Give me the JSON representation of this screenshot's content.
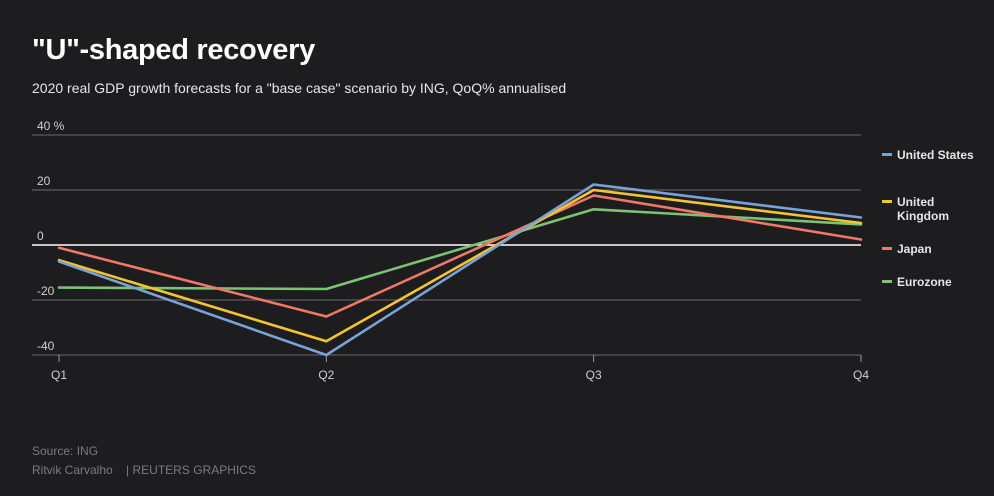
{
  "header": {
    "title": "\"U\"-shaped recovery",
    "subtitle": "2020 real GDP growth forecasts for a \"base case\" scenario by ING, QoQ% annualised"
  },
  "chart_data": {
    "type": "line",
    "title": "\"U\"-shaped recovery",
    "subtitle": "2020 real GDP growth forecasts for a \"base case\" scenario by ING, QoQ% annualised",
    "xlabel": "",
    "ylabel": "",
    "categories": [
      "Q1",
      "Q2",
      "Q3",
      "Q4"
    ],
    "ylim": [
      -40,
      40
    ],
    "y_ticks": [
      40,
      20,
      0,
      -20,
      -40
    ],
    "y_tick_labels": [
      "40 %",
      "20",
      "0",
      "-20",
      "-40"
    ],
    "grid": true,
    "legend_position": "right",
    "series": [
      {
        "name": "United States",
        "color": "#79a3d6",
        "values": [
          -6,
          -40,
          22,
          10
        ]
      },
      {
        "name": "United Kingdom",
        "color": "#f4c430",
        "values": [
          -5.5,
          -35,
          20,
          8
        ]
      },
      {
        "name": "Japan",
        "color": "#ef7866",
        "values": [
          -1,
          -26,
          18,
          2
        ]
      },
      {
        "name": "Eurozone",
        "color": "#7bc275",
        "values": [
          -15.5,
          -16,
          13,
          7.5
        ]
      }
    ]
  },
  "legend": {
    "items": [
      {
        "label": "United States",
        "color": "#79a3d6"
      },
      {
        "label": "United Kingdom",
        "color": "#f4c430"
      },
      {
        "label": "Japan",
        "color": "#ef7866"
      },
      {
        "label": "Eurozone",
        "color": "#7bc275"
      }
    ]
  },
  "footer": {
    "source": "Source: ING",
    "author": "Ritvik Carvalho",
    "separator": "|",
    "agency": "REUTERS GRAPHICS"
  }
}
